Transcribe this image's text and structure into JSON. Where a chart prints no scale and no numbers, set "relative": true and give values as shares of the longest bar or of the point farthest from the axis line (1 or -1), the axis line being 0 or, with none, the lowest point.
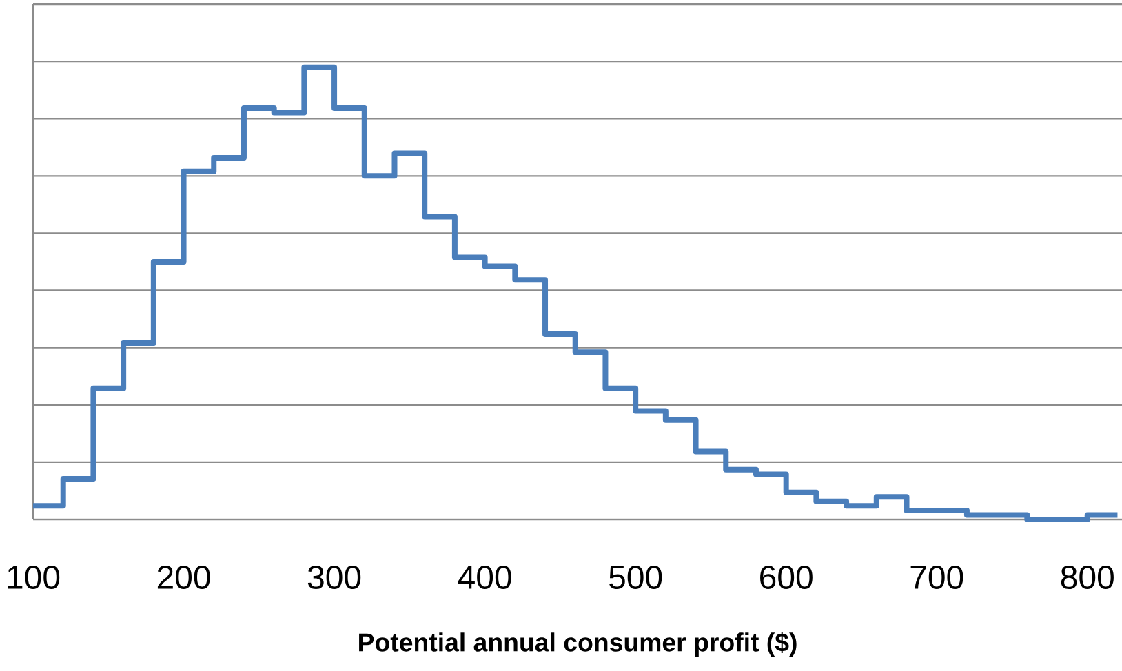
{
  "chart_data": {
    "type": "step",
    "relative": true,
    "xlabel": "Potential annual consumer profit ($)",
    "x": [
      100,
      120,
      140,
      160,
      180,
      200,
      220,
      240,
      260,
      280,
      300,
      320,
      340,
      360,
      380,
      400,
      420,
      440,
      460,
      480,
      500,
      520,
      540,
      560,
      580,
      600,
      620,
      640,
      660,
      680,
      700,
      720,
      740,
      760,
      780,
      800,
      820
    ],
    "values": [
      0.03,
      0.09,
      0.29,
      0.39,
      0.57,
      0.77,
      0.8,
      0.91,
      0.9,
      1,
      0.91,
      0.76,
      0.81,
      0.67,
      0.58,
      0.56,
      0.53,
      0.41,
      0.37,
      0.29,
      0.24,
      0.22,
      0.15,
      0.11,
      0.1,
      0.06,
      0.04,
      0.03,
      0.05,
      0.02,
      0.02,
      0.01,
      0.01,
      0,
      0,
      0.01,
      0.01
    ],
    "color": "#4a7ebb",
    "xlim": [
      100,
      823
    ],
    "xticks": [
      100,
      200,
      300,
      400,
      500,
      600,
      700,
      800
    ],
    "grid": "y",
    "tick_labels": "x"
  }
}
